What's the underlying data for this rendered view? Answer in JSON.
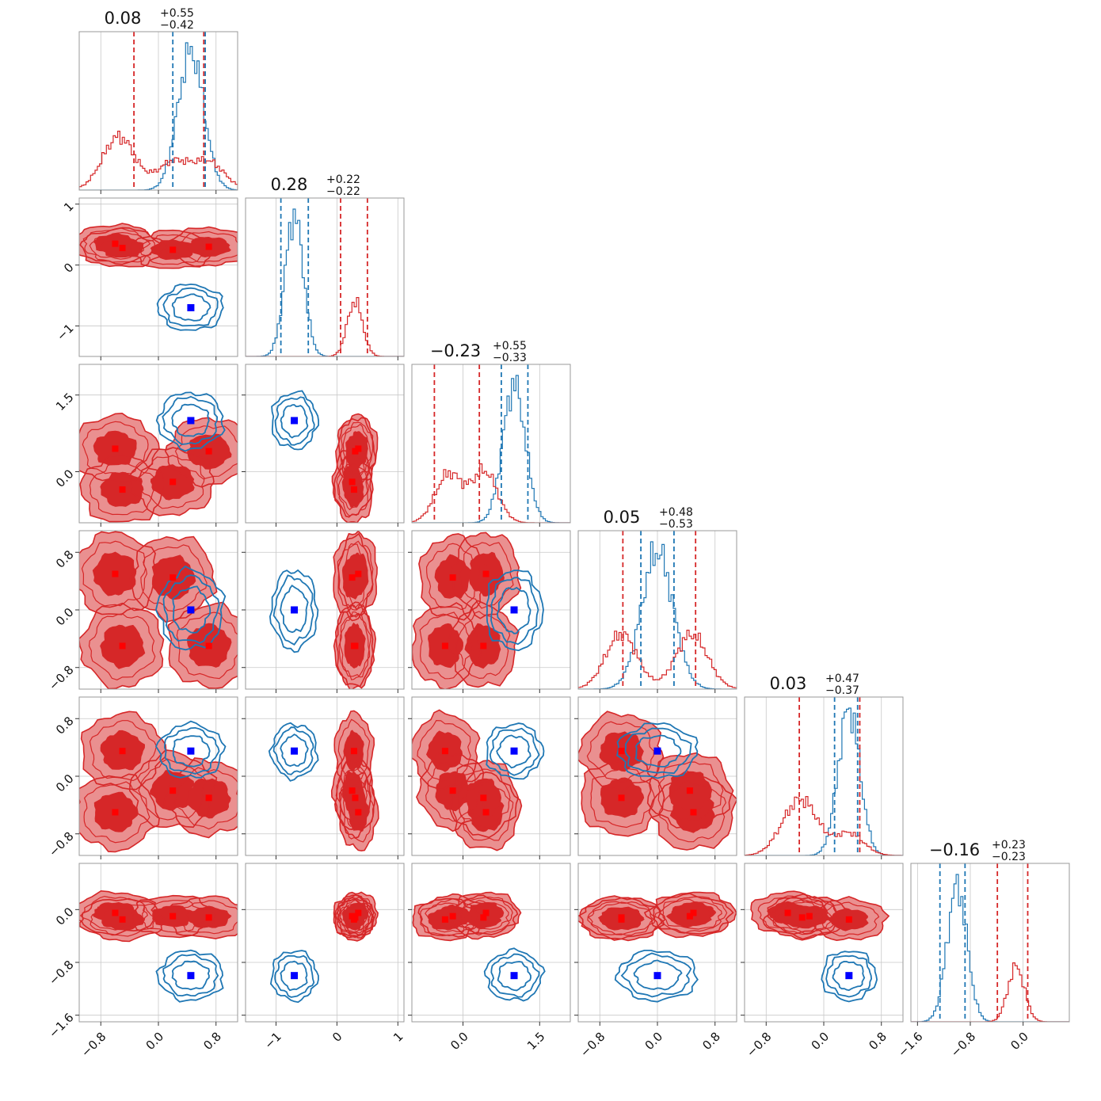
{
  "chart_data": {
    "type": "corner",
    "dims": 6,
    "colors": {
      "red": "#d62728",
      "red_mid": "#ea9090",
      "blue": "#1f77b4",
      "marker_red": "#ff0000",
      "marker_blue": "#0000ff"
    },
    "titles": [
      {
        "median": "0.08",
        "plus": "+0.55",
        "minus": "−0.42"
      },
      {
        "median": "0.28",
        "plus": "+0.22",
        "minus": "−0.22"
      },
      {
        "median": "−0.23",
        "plus": "+0.55",
        "minus": "−0.33"
      },
      {
        "median": "0.05",
        "plus": "+0.48",
        "minus": "−0.53"
      },
      {
        "median": "0.03",
        "plus": "+0.47",
        "minus": "−0.37"
      },
      {
        "median": "−0.16",
        "plus": "+0.23",
        "minus": "−0.23"
      }
    ],
    "ranges": [
      [
        -1.1,
        1.1
      ],
      [
        -1.5,
        1.1
      ],
      [
        -1.0,
        2.1
      ],
      [
        -1.1,
        1.1
      ],
      [
        -1.1,
        1.1
      ],
      [
        -1.7,
        0.7
      ]
    ],
    "ticks": [
      {
        "values": [
          -0.8,
          0.0,
          0.8
        ],
        "labels": [
          "−0.8",
          "0.0",
          "0.8"
        ]
      },
      {
        "values": [
          -1,
          0,
          1
        ],
        "labels": [
          "−1",
          "0",
          "1"
        ]
      },
      {
        "values": [
          0.0,
          1.5
        ],
        "labels": [
          "0.0",
          "1.5"
        ]
      },
      {
        "values": [
          -0.8,
          0.0,
          0.8
        ],
        "labels": [
          "−0.8",
          "0.0",
          "0.8"
        ]
      },
      {
        "values": [
          -0.8,
          0.0,
          0.8
        ],
        "labels": [
          "−0.8",
          "0.0",
          "0.8"
        ]
      },
      {
        "values": [
          -1.6,
          -0.8,
          0.0
        ],
        "labels": [
          "−1.6",
          "−0.8",
          "0.0"
        ]
      }
    ],
    "red_modes": [
      [
        -0.6,
        0.35,
        0.45,
        0.5,
        -0.5,
        -0.05
      ],
      [
        -0.5,
        0.28,
        -0.35,
        -0.5,
        0.35,
        -0.15
      ],
      [
        0.2,
        0.25,
        -0.2,
        0.45,
        -0.2,
        -0.1
      ],
      [
        0.7,
        0.3,
        0.4,
        -0.5,
        -0.3,
        -0.12
      ]
    ],
    "blue_center": [
      0.45,
      -0.7,
      1.0,
      0.0,
      0.35,
      -1.0
    ],
    "blue_sigma": [
      0.18,
      0.15,
      0.22,
      0.22,
      0.15,
      0.15
    ],
    "red_sigma": [
      0.22,
      0.12,
      0.25,
      0.22,
      0.2,
      0.12
    ],
    "quantile_lines": [
      {
        "red": [
          -0.34,
          0.63
        ],
        "blue": [
          0.2,
          0.65
        ]
      },
      {
        "red": [
          0.06,
          0.5
        ],
        "blue": [
          -0.92,
          -0.47
        ]
      },
      {
        "red": [
          -0.56,
          0.32
        ],
        "blue": [
          0.75,
          1.27
        ]
      },
      {
        "red": [
          -0.48,
          0.53
        ],
        "blue": [
          -0.23,
          0.23
        ]
      },
      {
        "red": [
          -0.34,
          0.5
        ],
        "blue": [
          0.15,
          0.47
        ]
      },
      {
        "red": [
          -0.39,
          0.07
        ],
        "blue": [
          -1.26,
          -0.88
        ]
      }
    ]
  }
}
